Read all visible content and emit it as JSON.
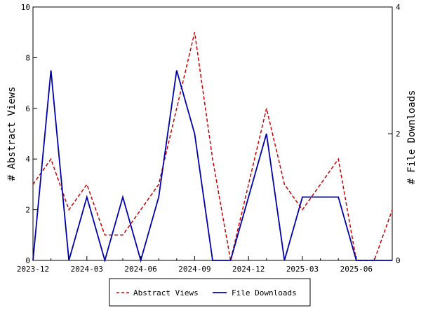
{
  "chart_data": {
    "type": "line",
    "x": [
      "2023-12",
      "2024-01",
      "2024-02",
      "2024-03",
      "2024-04",
      "2024-05",
      "2024-06",
      "2024-07",
      "2024-08",
      "2024-09",
      "2024-10",
      "2024-11",
      "2024-12",
      "2025-01",
      "2025-02",
      "2025-03",
      "2025-04",
      "2025-05",
      "2025-06",
      "2025-07",
      "2025-08"
    ],
    "x_tick_labels": [
      "2023-12",
      "2024-03",
      "2024-06",
      "2024-09",
      "2024-12",
      "2025-03",
      "2025-06"
    ],
    "ylabel_left": "# Abstract Views",
    "ylabel_right": "# File Downloads",
    "ylim_left": [
      0,
      10
    ],
    "ylim_right": [
      0,
      4
    ],
    "y_left_ticks": [
      "0",
      "2",
      "4",
      "6",
      "8",
      "10"
    ],
    "y_right_ticks": [
      "0",
      "2",
      "4"
    ],
    "grid": false,
    "legend_position": "bottom",
    "series": [
      {
        "name": "Abstract Views",
        "axis": "left",
        "style": "dashed",
        "color": "#cc0000",
        "values": [
          3,
          4,
          2,
          3,
          1,
          1,
          2,
          3,
          6,
          9,
          4,
          0,
          3,
          6,
          3,
          2,
          3,
          4,
          0,
          0,
          2
        ]
      },
      {
        "name": "File Downloads",
        "axis": "right",
        "style": "solid",
        "color": "#0000aa",
        "values": [
          0,
          3,
          0,
          1,
          0,
          1,
          0,
          1,
          3,
          2,
          0,
          0,
          1,
          2,
          0,
          1,
          1,
          1,
          0,
          0,
          0
        ]
      }
    ]
  }
}
